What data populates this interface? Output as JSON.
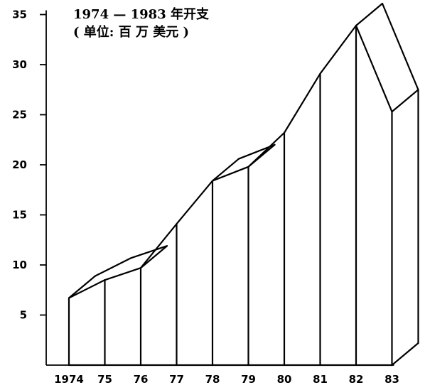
{
  "chart_data": {
    "type": "area",
    "title": "1974 — 1983 年开支",
    "subtitle": "( 单位: 百 万 美元 )",
    "xlabel": "",
    "ylabel": "",
    "categories": [
      "1974",
      "75",
      "76",
      "77",
      "78",
      "79",
      "80",
      "81",
      "82",
      "83"
    ],
    "values": [
      6.7,
      8.5,
      9.7,
      14.1,
      18.4,
      19.8,
      23.2,
      29.1,
      33.9,
      25.3
    ],
    "ylim": [
      0,
      35
    ],
    "yticks": [
      "5",
      "10",
      "15",
      "20",
      "25",
      "30",
      "35"
    ],
    "grid": false,
    "style": "3d-ribbon"
  }
}
